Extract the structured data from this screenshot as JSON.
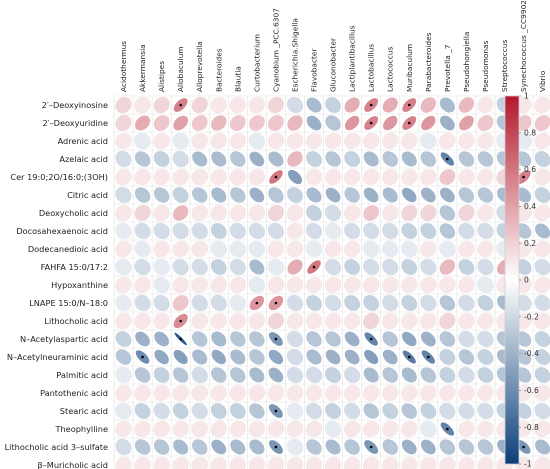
{
  "chart_data": {
    "type": "heatmap",
    "subtype": "correlation-ellipse",
    "columns": [
      "Acidothermus",
      "Akkermansia",
      "Alistipes",
      "Allobaculum",
      "Alloprevotella",
      "Bacteroides",
      "Blautia",
      "Curtobacterium",
      "Cyanobium _PCC.6307",
      "Escherichia.Shigella",
      "Flavobacter",
      "Gluconobacter",
      "Lactiplantibacillus",
      "Lactobacillus",
      "Lactococcus",
      "Muribaculum",
      "Parabacteroides",
      "Prevotella _7",
      "Pseudohongiella",
      "Pseudomonas",
      "Streptococcus",
      "Synechococcus _CC9902",
      "Vibrio"
    ],
    "rows": [
      {
        "label": "2′–Deoxyinosine",
        "values": [
          0.1,
          0.05,
          0.1,
          0.45,
          0.1,
          0.05,
          0.05,
          0.05,
          0.1,
          -0.1,
          -0.25,
          -0.15,
          0.25,
          0.45,
          0.25,
          0.45,
          0.2,
          -0.25,
          0.2,
          0.05,
          -0.15,
          0.05,
          0.05
        ],
        "sig": [
          3,
          13,
          15
        ]
      },
      {
        "label": "2′–Deoxyuridine",
        "values": [
          0.1,
          0.25,
          0.15,
          0.3,
          0.15,
          0.2,
          0.15,
          0.15,
          0.15,
          0.2,
          -0.3,
          -0.2,
          0.35,
          0.45,
          0.35,
          0.45,
          0.35,
          -0.3,
          0.3,
          0.15,
          -0.2,
          0.15,
          0.15
        ],
        "sig": [
          13,
          15
        ]
      },
      {
        "label": "Adrenic acid",
        "values": [
          0.05,
          -0.05,
          0.05,
          -0.05,
          0.05,
          0.05,
          0.05,
          -0.05,
          0.05,
          0.05,
          0.05,
          0.05,
          0.05,
          0.05,
          0.05,
          0.05,
          -0.05,
          0.05,
          0.05,
          0.05,
          -0.05,
          -0.05,
          0.05
        ],
        "sig": []
      },
      {
        "label": "Azelaic acid",
        "values": [
          -0.1,
          -0.2,
          -0.15,
          -0.1,
          -0.25,
          -0.25,
          -0.2,
          -0.3,
          -0.25,
          0.2,
          -0.15,
          -0.2,
          -0.15,
          -0.25,
          -0.2,
          -0.25,
          -0.2,
          -0.55,
          -0.2,
          -0.2,
          -0.2,
          -0.2,
          -0.15
        ],
        "sig": [
          17
        ]
      },
      {
        "label": "Cer 19:0;2O/16:0;(3OH)",
        "values": [
          0.05,
          0.05,
          0.05,
          0.05,
          0.05,
          0.05,
          0.05,
          0.05,
          0.5,
          -0.4,
          0.05,
          0.05,
          0.05,
          0.05,
          0.05,
          0.05,
          0.05,
          0.15,
          0.05,
          0.05,
          0.1,
          0.45,
          0.05
        ],
        "sig": [
          8,
          21
        ]
      },
      {
        "label": "Citric acid",
        "values": [
          -0.1,
          -0.2,
          -0.2,
          -0.15,
          -0.2,
          -0.25,
          -0.2,
          -0.3,
          -0.2,
          -0.15,
          -0.25,
          -0.3,
          -0.2,
          -0.3,
          -0.25,
          -0.35,
          -0.3,
          -0.3,
          -0.2,
          -0.2,
          -0.25,
          -0.25,
          -0.15
        ],
        "sig": []
      },
      {
        "label": "Deoxycholic acid",
        "values": [
          0.05,
          0.1,
          0.05,
          0.2,
          0.05,
          0.05,
          0.05,
          0.05,
          0.1,
          0.05,
          -0.15,
          -0.1,
          0.05,
          0.15,
          0.05,
          0.1,
          0.1,
          -0.2,
          0.1,
          0.05,
          -0.1,
          0.05,
          0.05
        ],
        "sig": []
      },
      {
        "label": "Docosahexaenoic acid",
        "values": [
          -0.05,
          -0.1,
          -0.1,
          -0.1,
          -0.1,
          -0.15,
          -0.1,
          -0.1,
          -0.1,
          0.05,
          -0.1,
          -0.05,
          -0.1,
          -0.1,
          -0.1,
          -0.15,
          -0.15,
          -0.2,
          -0.1,
          -0.1,
          -0.15,
          -0.2,
          -0.25
        ],
        "sig": []
      },
      {
        "label": "Dodecanedioic acid",
        "values": [
          0.05,
          -0.05,
          0.05,
          0.05,
          0.05,
          -0.05,
          -0.05,
          -0.05,
          0.05,
          0.05,
          -0.05,
          0.05,
          0.05,
          -0.05,
          -0.05,
          -0.05,
          0.05,
          -0.05,
          0.05,
          0.05,
          -0.05,
          0.05,
          0.05
        ],
        "sig": []
      },
      {
        "label": "FAHFA 15:0/17:2",
        "values": [
          -0.05,
          -0.1,
          -0.05,
          -0.1,
          -0.1,
          -0.15,
          -0.1,
          -0.25,
          -0.05,
          0.25,
          0.5,
          -0.1,
          -0.15,
          -0.1,
          -0.1,
          -0.15,
          -0.1,
          0.2,
          -0.15,
          -0.1,
          0.25,
          -0.15,
          -0.1
        ],
        "sig": [
          10
        ]
      },
      {
        "label": "Hypoxanthine",
        "values": [
          0.05,
          0.05,
          -0.05,
          0.05,
          0.05,
          0.05,
          0.05,
          -0.05,
          0.05,
          0.05,
          0.05,
          0.05,
          0.05,
          0.05,
          0.05,
          0.05,
          0.05,
          0.05,
          0.05,
          -0.05,
          0.05,
          0.05,
          0.05
        ],
        "sig": []
      },
      {
        "label": "LNAPE 15:0/N–18:0",
        "values": [
          -0.05,
          -0.1,
          -0.1,
          0.15,
          -0.1,
          -0.1,
          -0.05,
          0.35,
          0.35,
          -0.1,
          -0.15,
          -0.1,
          -0.15,
          -0.15,
          -0.1,
          -0.15,
          -0.1,
          -0.2,
          -0.1,
          -0.15,
          -0.25,
          -0.1,
          -0.1
        ],
        "sig": [
          7,
          8
        ]
      },
      {
        "label": "Lithocholic acid",
        "values": [
          0.05,
          0.05,
          0.05,
          0.4,
          0.05,
          0.05,
          0.05,
          0.05,
          0.1,
          0.05,
          0.05,
          0.05,
          0.05,
          0.1,
          0.05,
          0.05,
          0.05,
          0.1,
          0.05,
          0.05,
          0.05,
          0.05,
          0.05
        ],
        "sig": [
          3
        ]
      },
      {
        "label": "N–Acetylaspartic acid",
        "values": [
          -0.15,
          -0.3,
          -0.3,
          -0.85,
          -0.2,
          -0.25,
          -0.2,
          -0.2,
          -0.45,
          -0.1,
          -0.2,
          -0.2,
          -0.3,
          -0.55,
          -0.2,
          -0.35,
          -0.3,
          -0.2,
          -0.1,
          -0.1,
          -0.2,
          -0.2,
          -0.15
        ],
        "sig": [
          3,
          8,
          13
        ]
      },
      {
        "label": "N–Acetylneuraminic acid",
        "values": [
          -0.2,
          -0.5,
          -0.35,
          -0.4,
          -0.25,
          -0.35,
          -0.25,
          -0.2,
          -0.35,
          -0.1,
          -0.25,
          -0.3,
          -0.3,
          -0.4,
          -0.3,
          -0.6,
          -0.55,
          -0.15,
          -0.2,
          -0.15,
          -0.25,
          -0.2,
          -0.15
        ],
        "sig": [
          1,
          15,
          16
        ]
      },
      {
        "label": "Palmitic acid",
        "values": [
          -0.05,
          -0.2,
          -0.15,
          -0.2,
          -0.1,
          -0.2,
          -0.2,
          -0.25,
          -0.3,
          -0.1,
          -0.1,
          -0.15,
          -0.1,
          -0.25,
          -0.2,
          -0.25,
          -0.2,
          -0.15,
          -0.1,
          -0.15,
          -0.2,
          -0.2,
          -0.15
        ],
        "sig": []
      },
      {
        "label": "Pantothenic acid",
        "values": [
          0.05,
          0.05,
          0.05,
          0.05,
          0.05,
          0.05,
          0.05,
          0.05,
          0.05,
          0.05,
          0.05,
          0.05,
          0.05,
          0.05,
          0.05,
          0.05,
          0.05,
          0.05,
          0.05,
          0.05,
          0.05,
          0.05,
          0.05
        ],
        "sig": []
      },
      {
        "label": "Stearic acid",
        "values": [
          -0.05,
          -0.15,
          -0.1,
          -0.15,
          -0.1,
          -0.15,
          -0.15,
          -0.2,
          -0.45,
          -0.05,
          -0.1,
          -0.15,
          -0.1,
          -0.2,
          -0.15,
          -0.2,
          -0.15,
          -0.1,
          -0.1,
          -0.1,
          -0.15,
          -0.15,
          -0.1
        ],
        "sig": [
          8
        ]
      },
      {
        "label": "Theophylline",
        "values": [
          0.05,
          0.05,
          0.05,
          0.05,
          0.05,
          0.05,
          0.05,
          0.05,
          0.05,
          0.05,
          0.05,
          -0.05,
          0.05,
          0.05,
          0.05,
          0.05,
          -0.05,
          -0.55,
          0.05,
          0.05,
          0.05,
          0.05,
          0.05
        ],
        "sig": [
          17
        ]
      },
      {
        "label": "Lithocholic acid 3–sulfate",
        "values": [
          -0.1,
          -0.2,
          -0.2,
          -0.25,
          -0.2,
          -0.3,
          -0.25,
          -0.25,
          -0.45,
          -0.05,
          -0.2,
          -0.25,
          -0.2,
          -0.45,
          -0.2,
          -0.3,
          -0.3,
          -0.2,
          -0.2,
          -0.2,
          -0.3,
          -0.45,
          -0.25
        ],
        "sig": [
          8,
          13,
          21
        ]
      },
      {
        "label": "β–Muricholic acid",
        "values": [
          0.05,
          0.05,
          0.05,
          0.05,
          0.05,
          0.05,
          0.05,
          0.05,
          0.05,
          0.05,
          0.05,
          0.05,
          0.05,
          0.05,
          0.05,
          0.05,
          0.05,
          0.05,
          0.05,
          0.05,
          0.05,
          0.05,
          0.05
        ],
        "sig": []
      }
    ],
    "sig_marker": ".",
    "color_scale": {
      "ticks": [
        "1",
        "0.8",
        "0.6",
        "0.4",
        "0.2",
        "0",
        "-0.2",
        "-0.4",
        "-0.6",
        "-0.8",
        "-1"
      ],
      "tick_values": [
        1,
        0.8,
        0.6,
        0.4,
        0.2,
        0,
        -0.2,
        -0.4,
        -0.6,
        -0.8,
        -1
      ],
      "range": [
        -1,
        1
      ],
      "colors": {
        "negative": "#0b3f78",
        "mid": "#ffffff",
        "positive": "#b3182b"
      }
    }
  }
}
